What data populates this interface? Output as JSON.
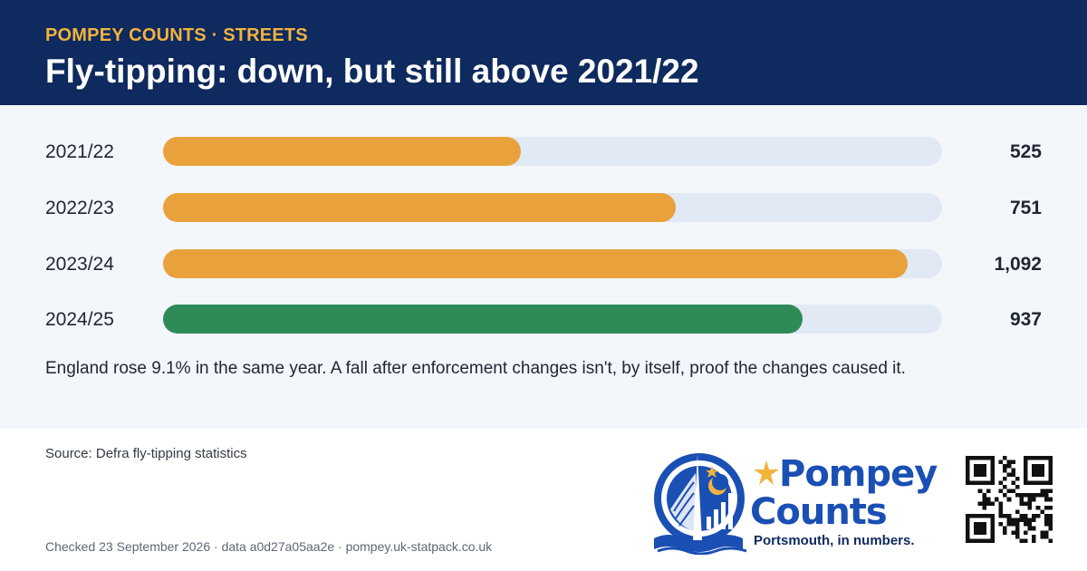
{
  "header": {
    "kicker": "POMPEY COUNTS · STREETS",
    "title": "Fly-tipping: down, but still above 2021/22"
  },
  "chart_data": {
    "type": "bar",
    "orientation": "horizontal",
    "categories": [
      "2021/22",
      "2022/23",
      "2023/24",
      "2024/25"
    ],
    "values": [
      525,
      751,
      1092,
      937
    ],
    "value_labels": [
      "525",
      "751",
      "1,092",
      "937"
    ],
    "bar_colors": [
      "#e9a23b",
      "#e9a23b",
      "#e9a23b",
      "#2e8b57"
    ],
    "track_color": "#e1e9f5",
    "title": "Fly-tipping: down, but still above 2021/22",
    "xlabel": "",
    "ylabel": "",
    "xlim": [
      0,
      1142
    ],
    "grid": false,
    "legend": "none"
  },
  "note": "England rose 9.1% in the same year. A fall after enforcement changes isn't, by itself, proof the changes caused it.",
  "source": "Source: Defra fly-tipping statistics",
  "footer": "Checked 23 September 2026 · data a0d27a05aa2e · pompey.uk-statpack.co.uk",
  "logo": {
    "word1": "Pompey",
    "word2": "Counts",
    "tagline": "Portsmouth, in numbers."
  },
  "colors": {
    "header_bg": "#0e2a5e",
    "accent_gold": "#f2b33d",
    "brand_blue": "#1a4fb4"
  }
}
